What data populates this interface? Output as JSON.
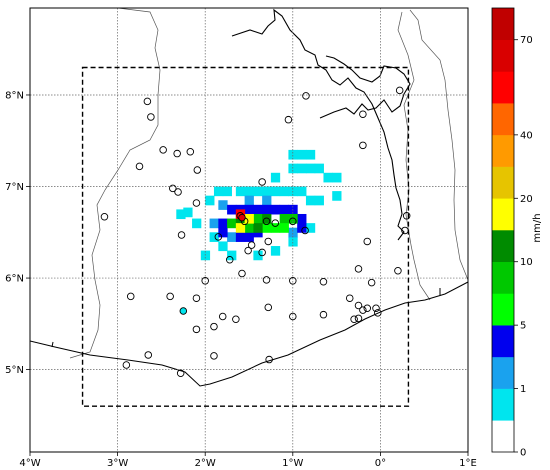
{
  "map": {
    "lon_labels": [
      "4°W",
      "3°W",
      "2°W",
      "1°W",
      "0°",
      "1°E"
    ],
    "lon_values": [
      -4,
      -3,
      -2,
      -1,
      0,
      1
    ],
    "lat_labels": [
      "5°N",
      "6°N",
      "7°N",
      "8°N"
    ],
    "lat_values": [
      5,
      6,
      7,
      8
    ],
    "extent": {
      "lon": [
        -4,
        1
      ],
      "lat": [
        4.1,
        8.95
      ]
    },
    "domain_box": {
      "lon": [
        -3.4,
        0.32
      ],
      "lat": [
        4.6,
        8.3
      ]
    },
    "grid": true,
    "rain_cells": [
      {
        "lon": -2.28,
        "lat": 6.7,
        "class": 1
      },
      {
        "lon": -2.2,
        "lat": 6.72,
        "class": 1
      },
      {
        "lon": -2.1,
        "lat": 6.6,
        "class": 1
      },
      {
        "lon": -1.95,
        "lat": 6.85,
        "class": 1
      },
      {
        "lon": -1.85,
        "lat": 6.95,
        "class": 1
      },
      {
        "lon": -1.75,
        "lat": 6.95,
        "class": 1
      },
      {
        "lon": -1.6,
        "lat": 6.95,
        "class": 1
      },
      {
        "lon": -1.5,
        "lat": 6.95,
        "class": 1
      },
      {
        "lon": -1.4,
        "lat": 6.95,
        "class": 1
      },
      {
        "lon": -1.3,
        "lat": 6.95,
        "class": 1
      },
      {
        "lon": -1.2,
        "lat": 6.95,
        "class": 1
      },
      {
        "lon": -1.1,
        "lat": 6.95,
        "class": 1
      },
      {
        "lon": -1.0,
        "lat": 6.95,
        "class": 1
      },
      {
        "lon": -0.9,
        "lat": 6.95,
        "class": 1
      },
      {
        "lon": -0.8,
        "lat": 6.85,
        "class": 1
      },
      {
        "lon": -0.7,
        "lat": 6.85,
        "class": 1
      },
      {
        "lon": -1.0,
        "lat": 7.2,
        "class": 1
      },
      {
        "lon": -0.9,
        "lat": 7.2,
        "class": 1
      },
      {
        "lon": -0.8,
        "lat": 7.2,
        "class": 1
      },
      {
        "lon": -0.7,
        "lat": 7.2,
        "class": 1
      },
      {
        "lon": -1.0,
        "lat": 7.35,
        "class": 1
      },
      {
        "lon": -0.9,
        "lat": 7.35,
        "class": 1
      },
      {
        "lon": -0.8,
        "lat": 7.35,
        "class": 1
      },
      {
        "lon": -1.2,
        "lat": 7.1,
        "class": 1
      },
      {
        "lon": -0.6,
        "lat": 7.1,
        "class": 1
      },
      {
        "lon": -0.5,
        "lat": 7.1,
        "class": 1
      },
      {
        "lon": -0.5,
        "lat": 6.9,
        "class": 1
      },
      {
        "lon": -1.9,
        "lat": 6.45,
        "class": 1
      },
      {
        "lon": -1.8,
        "lat": 6.35,
        "class": 1
      },
      {
        "lon": -1.7,
        "lat": 6.25,
        "class": 1
      },
      {
        "lon": -2.0,
        "lat": 6.25,
        "class": 1
      },
      {
        "lon": -1.4,
        "lat": 6.25,
        "class": 1
      },
      {
        "lon": -1.2,
        "lat": 6.3,
        "class": 1
      },
      {
        "lon": -1.0,
        "lat": 6.4,
        "class": 1
      },
      {
        "lon": -0.8,
        "lat": 6.55,
        "class": 1
      },
      {
        "lon": -1.9,
        "lat": 6.6,
        "class": 2
      },
      {
        "lon": -1.8,
        "lat": 6.8,
        "class": 2
      },
      {
        "lon": -1.5,
        "lat": 6.85,
        "class": 2
      },
      {
        "lon": -1.3,
        "lat": 6.85,
        "class": 2
      },
      {
        "lon": -1.0,
        "lat": 6.5,
        "class": 2
      },
      {
        "lon": -1.7,
        "lat": 6.45,
        "class": 2
      },
      {
        "lon": -1.7,
        "lat": 6.75,
        "class": 3
      },
      {
        "lon": -1.6,
        "lat": 6.75,
        "class": 3
      },
      {
        "lon": -1.5,
        "lat": 6.75,
        "class": 3
      },
      {
        "lon": -1.4,
        "lat": 6.75,
        "class": 3
      },
      {
        "lon": -1.3,
        "lat": 6.75,
        "class": 3
      },
      {
        "lon": -1.2,
        "lat": 6.75,
        "class": 3
      },
      {
        "lon": -1.1,
        "lat": 6.75,
        "class": 3
      },
      {
        "lon": -1.0,
        "lat": 6.75,
        "class": 3
      },
      {
        "lon": -1.8,
        "lat": 6.6,
        "class": 3
      },
      {
        "lon": -1.8,
        "lat": 6.5,
        "class": 3
      },
      {
        "lon": -1.6,
        "lat": 6.45,
        "class": 3
      },
      {
        "lon": -1.5,
        "lat": 6.45,
        "class": 3
      },
      {
        "lon": -1.4,
        "lat": 6.5,
        "class": 3
      },
      {
        "lon": -0.9,
        "lat": 6.55,
        "class": 3
      },
      {
        "lon": -0.9,
        "lat": 6.65,
        "class": 3
      },
      {
        "lon": -1.7,
        "lat": 6.6,
        "class": 5
      },
      {
        "lon": -1.5,
        "lat": 6.55,
        "class": 5
      },
      {
        "lon": -1.4,
        "lat": 6.65,
        "class": 5
      },
      {
        "lon": -1.1,
        "lat": 6.65,
        "class": 5
      },
      {
        "lon": -1.0,
        "lat": 6.65,
        "class": 5
      },
      {
        "lon": -1.3,
        "lat": 6.55,
        "class": 4
      },
      {
        "lon": -1.2,
        "lat": 6.55,
        "class": 4
      },
      {
        "lon": -1.1,
        "lat": 6.55,
        "class": 4
      },
      {
        "lon": -1.6,
        "lat": 6.65,
        "class": 6
      },
      {
        "lon": -1.4,
        "lat": 6.55,
        "class": 6
      },
      {
        "lon": -1.3,
        "lat": 6.65,
        "class": 6
      },
      {
        "lon": -1.6,
        "lat": 6.55,
        "class": 7
      },
      {
        "lon": -1.5,
        "lat": 6.65,
        "class": 7
      },
      {
        "lon": -1.6,
        "lat": 6.7,
        "class": 11
      }
    ],
    "stations": [
      [
        -2.66,
        7.93
      ],
      [
        -2.62,
        7.76
      ],
      [
        -2.48,
        7.4
      ],
      [
        -2.32,
        7.36
      ],
      [
        -2.17,
        7.38
      ],
      [
        -2.09,
        7.18
      ],
      [
        -2.75,
        7.22
      ],
      [
        -2.37,
        6.98
      ],
      [
        -2.31,
        6.94
      ],
      [
        -2.1,
        6.82
      ],
      [
        -3.15,
        6.67
      ],
      [
        -2.27,
        6.47
      ],
      [
        -1.6,
        6.68
      ],
      [
        -1.55,
        6.62
      ],
      [
        -1.85,
        6.45
      ],
      [
        -1.35,
        7.05
      ],
      [
        -1.2,
        6.6
      ],
      [
        -1.3,
        6.62
      ],
      [
        -1.0,
        6.62
      ],
      [
        -0.86,
        6.52
      ],
      [
        -1.28,
        6.4
      ],
      [
        -1.47,
        6.36
      ],
      [
        -1.51,
        6.3
      ],
      [
        -1.35,
        6.28
      ],
      [
        -1.72,
        6.2
      ],
      [
        -1.58,
        6.05
      ],
      [
        -1.05,
        7.73
      ],
      [
        -0.85,
        7.99
      ],
      [
        -0.2,
        7.79
      ],
      [
        -0.2,
        7.45
      ],
      [
        -0.15,
        6.4
      ],
      [
        -0.25,
        6.1
      ],
      [
        -0.1,
        5.95
      ],
      [
        0.2,
        6.08
      ],
      [
        0.3,
        6.68
      ],
      [
        0.28,
        6.52
      ],
      [
        0.22,
        8.05
      ],
      [
        -1.0,
        5.97
      ],
      [
        -1.3,
        5.98
      ],
      [
        -2.0,
        5.97
      ],
      [
        -0.65,
        5.96
      ],
      [
        -2.85,
        5.8
      ],
      [
        -2.4,
        5.8
      ],
      [
        -2.1,
        5.78
      ],
      [
        -1.28,
        5.68
      ],
      [
        -1.0,
        5.58
      ],
      [
        -0.65,
        5.6
      ],
      [
        -0.35,
        5.78
      ],
      [
        -0.25,
        5.7
      ],
      [
        -0.2,
        5.65
      ],
      [
        -0.15,
        5.67
      ],
      [
        -0.25,
        5.56
      ],
      [
        -0.05,
        5.67
      ],
      [
        -0.03,
        5.62
      ],
      [
        -0.3,
        5.55
      ],
      [
        -1.8,
        5.58
      ],
      [
        -1.65,
        5.55
      ],
      [
        -2.1,
        5.44
      ],
      [
        -1.9,
        5.47
      ],
      [
        -2.65,
        5.16
      ],
      [
        -2.9,
        5.05
      ],
      [
        -1.9,
        5.15
      ],
      [
        -1.27,
        5.11
      ],
      [
        -2.28,
        4.96
      ]
    ],
    "highlight_station": [
      -2.25,
      5.64
    ]
  },
  "colorbar": {
    "unit_label": "mm/h",
    "tick_labels": [
      "0",
      "1",
      "5",
      "10",
      "20",
      "40",
      "70"
    ],
    "levels": [
      0,
      0.5,
      1,
      3,
      5,
      7,
      10,
      15,
      20,
      30,
      40,
      50,
      60,
      70,
      80
    ],
    "tick_values": [
      0,
      1,
      5,
      10,
      20,
      40,
      70
    ],
    "colors": [
      "#ffffff",
      "#00e5ee",
      "#1aa2ee",
      "#0000ee",
      "#00ff00",
      "#00c800",
      "#008b00",
      "#ffff00",
      "#e6c400",
      "#ff9a00",
      "#ff6600",
      "#ff0000",
      "#d90000",
      "#c00000"
    ]
  }
}
